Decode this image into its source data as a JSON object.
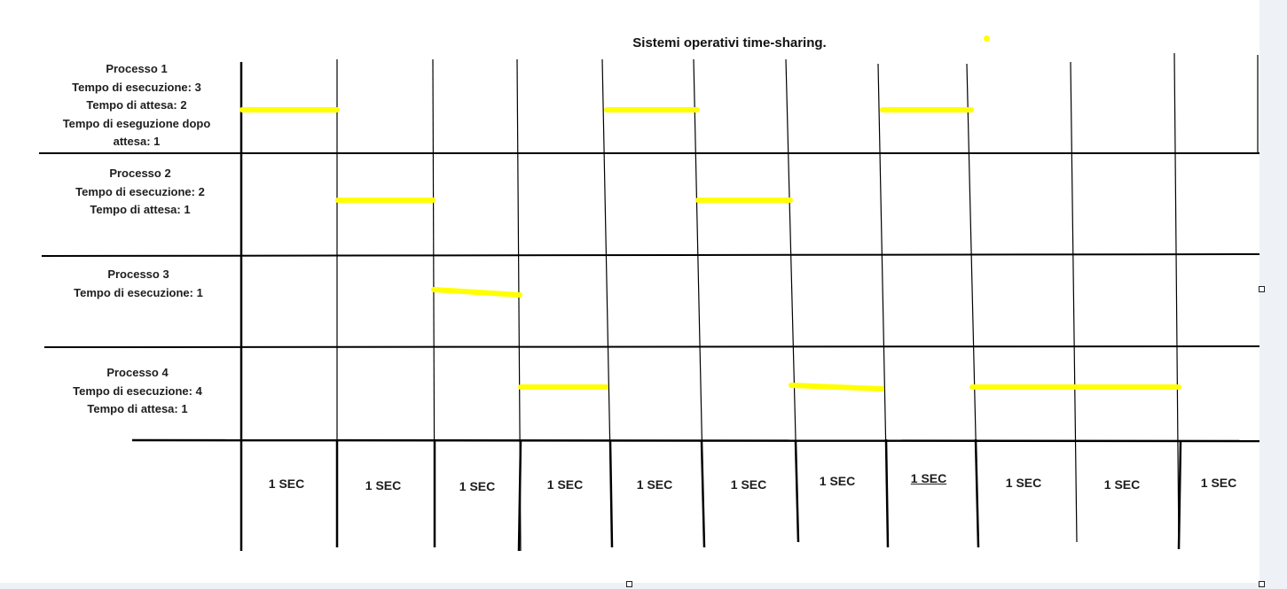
{
  "diagram": {
    "title": "Sistemi operativi time-sharing.",
    "highlight_color": "#ffff00",
    "line_color": "#000000",
    "processes": [
      {
        "lines": [
          "Processo 1",
          "Tempo di esecuzione: 3",
          "Tempo di attesa: 2",
          "Tempo di eseguzione dopo",
          "attesa: 1"
        ]
      },
      {
        "lines": [
          "Processo 2",
          "Tempo di esecuzione: 2",
          "Tempo di attesa: 1"
        ]
      },
      {
        "lines": [
          "Processo 3",
          "Tempo di esecuzione: 1"
        ]
      },
      {
        "lines": [
          "Processo 4",
          "Tempo di esecuzione: 4",
          "Tempo di attesa: 1"
        ]
      }
    ],
    "time_slots": [
      "1 SEC",
      "1 SEC",
      "1 SEC",
      "1 SEC",
      "1 SEC",
      "1 SEC",
      "1 SEC",
      "1 SEC",
      "1 SEC",
      "1 SEC",
      "1 SEC"
    ],
    "schedule": [
      {
        "process": 1,
        "start_slot": 0,
        "length": 1
      },
      {
        "process": 2,
        "start_slot": 1,
        "length": 1
      },
      {
        "process": 3,
        "start_slot": 2,
        "length": 1
      },
      {
        "process": 4,
        "start_slot": 3,
        "length": 1
      },
      {
        "process": 1,
        "start_slot": 4,
        "length": 1
      },
      {
        "process": 2,
        "start_slot": 5,
        "length": 1
      },
      {
        "process": 4,
        "start_slot": 6,
        "length": 1
      },
      {
        "process": 1,
        "start_slot": 7,
        "length": 1
      },
      {
        "process": 4,
        "start_slot": 8,
        "length": 2
      }
    ]
  }
}
